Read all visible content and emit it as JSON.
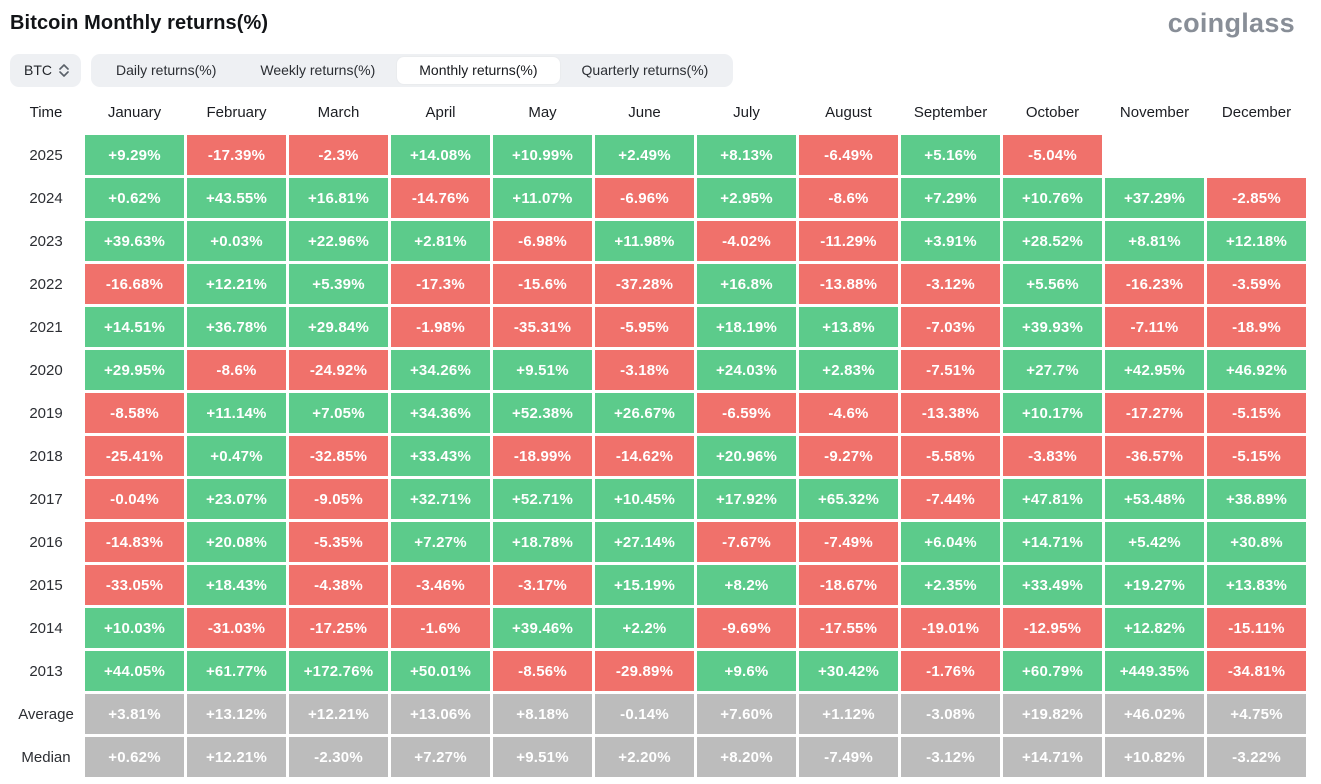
{
  "page": {
    "title": "Bitcoin Monthly returns(%)",
    "logo": "coinglass"
  },
  "colors": {
    "positive": "#5ccb8b",
    "negative": "#f0716b",
    "neutral": "#bcbcbc",
    "tab_bg": "#eef0f3",
    "active_tab_bg": "#ffffff",
    "logo_gray": "#888e97"
  },
  "controls": {
    "coin_selector": {
      "value": "BTC",
      "icon": "updown-chevron-icon"
    },
    "tabs": [
      {
        "label": "Daily returns(%)",
        "active": false
      },
      {
        "label": "Weekly returns(%)",
        "active": false
      },
      {
        "label": "Monthly returns(%)",
        "active": true
      },
      {
        "label": "Quarterly returns(%)",
        "active": false
      }
    ]
  },
  "chart_data": {
    "type": "table",
    "title": "Bitcoin Monthly returns(%)",
    "time_header": "Time",
    "columns": [
      "January",
      "February",
      "March",
      "April",
      "May",
      "June",
      "July",
      "August",
      "September",
      "October",
      "November",
      "December"
    ],
    "legend": {
      "g": "positive (green)",
      "r": "negative (red)",
      "n": "summary (gray)",
      "null": "no data"
    },
    "rows": [
      {
        "label": "2025",
        "cells": [
          {
            "v": "+9.29%",
            "c": "g"
          },
          {
            "v": "-17.39%",
            "c": "r"
          },
          {
            "v": "-2.3%",
            "c": "r"
          },
          {
            "v": "+14.08%",
            "c": "g"
          },
          {
            "v": "+10.99%",
            "c": "g"
          },
          {
            "v": "+2.49%",
            "c": "g"
          },
          {
            "v": "+8.13%",
            "c": "g"
          },
          {
            "v": "-6.49%",
            "c": "r"
          },
          {
            "v": "+5.16%",
            "c": "g"
          },
          {
            "v": "-5.04%",
            "c": "r"
          },
          null,
          null
        ]
      },
      {
        "label": "2024",
        "cells": [
          {
            "v": "+0.62%",
            "c": "g"
          },
          {
            "v": "+43.55%",
            "c": "g"
          },
          {
            "v": "+16.81%",
            "c": "g"
          },
          {
            "v": "-14.76%",
            "c": "r"
          },
          {
            "v": "+11.07%",
            "c": "g"
          },
          {
            "v": "-6.96%",
            "c": "r"
          },
          {
            "v": "+2.95%",
            "c": "g"
          },
          {
            "v": "-8.6%",
            "c": "r"
          },
          {
            "v": "+7.29%",
            "c": "g"
          },
          {
            "v": "+10.76%",
            "c": "g"
          },
          {
            "v": "+37.29%",
            "c": "g"
          },
          {
            "v": "-2.85%",
            "c": "r"
          }
        ]
      },
      {
        "label": "2023",
        "cells": [
          {
            "v": "+39.63%",
            "c": "g"
          },
          {
            "v": "+0.03%",
            "c": "g"
          },
          {
            "v": "+22.96%",
            "c": "g"
          },
          {
            "v": "+2.81%",
            "c": "g"
          },
          {
            "v": "-6.98%",
            "c": "r"
          },
          {
            "v": "+11.98%",
            "c": "g"
          },
          {
            "v": "-4.02%",
            "c": "r"
          },
          {
            "v": "-11.29%",
            "c": "r"
          },
          {
            "v": "+3.91%",
            "c": "g"
          },
          {
            "v": "+28.52%",
            "c": "g"
          },
          {
            "v": "+8.81%",
            "c": "g"
          },
          {
            "v": "+12.18%",
            "c": "g"
          }
        ]
      },
      {
        "label": "2022",
        "cells": [
          {
            "v": "-16.68%",
            "c": "r"
          },
          {
            "v": "+12.21%",
            "c": "g"
          },
          {
            "v": "+5.39%",
            "c": "g"
          },
          {
            "v": "-17.3%",
            "c": "r"
          },
          {
            "v": "-15.6%",
            "c": "r"
          },
          {
            "v": "-37.28%",
            "c": "r"
          },
          {
            "v": "+16.8%",
            "c": "g"
          },
          {
            "v": "-13.88%",
            "c": "r"
          },
          {
            "v": "-3.12%",
            "c": "r"
          },
          {
            "v": "+5.56%",
            "c": "g"
          },
          {
            "v": "-16.23%",
            "c": "r"
          },
          {
            "v": "-3.59%",
            "c": "r"
          }
        ]
      },
      {
        "label": "2021",
        "cells": [
          {
            "v": "+14.51%",
            "c": "g"
          },
          {
            "v": "+36.78%",
            "c": "g"
          },
          {
            "v": "+29.84%",
            "c": "g"
          },
          {
            "v": "-1.98%",
            "c": "r"
          },
          {
            "v": "-35.31%",
            "c": "r"
          },
          {
            "v": "-5.95%",
            "c": "r"
          },
          {
            "v": "+18.19%",
            "c": "g"
          },
          {
            "v": "+13.8%",
            "c": "g"
          },
          {
            "v": "-7.03%",
            "c": "r"
          },
          {
            "v": "+39.93%",
            "c": "g"
          },
          {
            "v": "-7.11%",
            "c": "r"
          },
          {
            "v": "-18.9%",
            "c": "r"
          }
        ]
      },
      {
        "label": "2020",
        "cells": [
          {
            "v": "+29.95%",
            "c": "g"
          },
          {
            "v": "-8.6%",
            "c": "r"
          },
          {
            "v": "-24.92%",
            "c": "r"
          },
          {
            "v": "+34.26%",
            "c": "g"
          },
          {
            "v": "+9.51%",
            "c": "g"
          },
          {
            "v": "-3.18%",
            "c": "r"
          },
          {
            "v": "+24.03%",
            "c": "g"
          },
          {
            "v": "+2.83%",
            "c": "g"
          },
          {
            "v": "-7.51%",
            "c": "r"
          },
          {
            "v": "+27.7%",
            "c": "g"
          },
          {
            "v": "+42.95%",
            "c": "g"
          },
          {
            "v": "+46.92%",
            "c": "g"
          }
        ]
      },
      {
        "label": "2019",
        "cells": [
          {
            "v": "-8.58%",
            "c": "r"
          },
          {
            "v": "+11.14%",
            "c": "g"
          },
          {
            "v": "+7.05%",
            "c": "g"
          },
          {
            "v": "+34.36%",
            "c": "g"
          },
          {
            "v": "+52.38%",
            "c": "g"
          },
          {
            "v": "+26.67%",
            "c": "g"
          },
          {
            "v": "-6.59%",
            "c": "r"
          },
          {
            "v": "-4.6%",
            "c": "r"
          },
          {
            "v": "-13.38%",
            "c": "r"
          },
          {
            "v": "+10.17%",
            "c": "g"
          },
          {
            "v": "-17.27%",
            "c": "r"
          },
          {
            "v": "-5.15%",
            "c": "r"
          }
        ]
      },
      {
        "label": "2018",
        "cells": [
          {
            "v": "-25.41%",
            "c": "r"
          },
          {
            "v": "+0.47%",
            "c": "g"
          },
          {
            "v": "-32.85%",
            "c": "r"
          },
          {
            "v": "+33.43%",
            "c": "g"
          },
          {
            "v": "-18.99%",
            "c": "r"
          },
          {
            "v": "-14.62%",
            "c": "r"
          },
          {
            "v": "+20.96%",
            "c": "g"
          },
          {
            "v": "-9.27%",
            "c": "r"
          },
          {
            "v": "-5.58%",
            "c": "r"
          },
          {
            "v": "-3.83%",
            "c": "r"
          },
          {
            "v": "-36.57%",
            "c": "r"
          },
          {
            "v": "-5.15%",
            "c": "r"
          }
        ]
      },
      {
        "label": "2017",
        "cells": [
          {
            "v": "-0.04%",
            "c": "r"
          },
          {
            "v": "+23.07%",
            "c": "g"
          },
          {
            "v": "-9.05%",
            "c": "r"
          },
          {
            "v": "+32.71%",
            "c": "g"
          },
          {
            "v": "+52.71%",
            "c": "g"
          },
          {
            "v": "+10.45%",
            "c": "g"
          },
          {
            "v": "+17.92%",
            "c": "g"
          },
          {
            "v": "+65.32%",
            "c": "g"
          },
          {
            "v": "-7.44%",
            "c": "r"
          },
          {
            "v": "+47.81%",
            "c": "g"
          },
          {
            "v": "+53.48%",
            "c": "g"
          },
          {
            "v": "+38.89%",
            "c": "g"
          }
        ]
      },
      {
        "label": "2016",
        "cells": [
          {
            "v": "-14.83%",
            "c": "r"
          },
          {
            "v": "+20.08%",
            "c": "g"
          },
          {
            "v": "-5.35%",
            "c": "r"
          },
          {
            "v": "+7.27%",
            "c": "g"
          },
          {
            "v": "+18.78%",
            "c": "g"
          },
          {
            "v": "+27.14%",
            "c": "g"
          },
          {
            "v": "-7.67%",
            "c": "r"
          },
          {
            "v": "-7.49%",
            "c": "r"
          },
          {
            "v": "+6.04%",
            "c": "g"
          },
          {
            "v": "+14.71%",
            "c": "g"
          },
          {
            "v": "+5.42%",
            "c": "g"
          },
          {
            "v": "+30.8%",
            "c": "g"
          }
        ]
      },
      {
        "label": "2015",
        "cells": [
          {
            "v": "-33.05%",
            "c": "r"
          },
          {
            "v": "+18.43%",
            "c": "g"
          },
          {
            "v": "-4.38%",
            "c": "r"
          },
          {
            "v": "-3.46%",
            "c": "r"
          },
          {
            "v": "-3.17%",
            "c": "r"
          },
          {
            "v": "+15.19%",
            "c": "g"
          },
          {
            "v": "+8.2%",
            "c": "g"
          },
          {
            "v": "-18.67%",
            "c": "r"
          },
          {
            "v": "+2.35%",
            "c": "g"
          },
          {
            "v": "+33.49%",
            "c": "g"
          },
          {
            "v": "+19.27%",
            "c": "g"
          },
          {
            "v": "+13.83%",
            "c": "g"
          }
        ]
      },
      {
        "label": "2014",
        "cells": [
          {
            "v": "+10.03%",
            "c": "g"
          },
          {
            "v": "-31.03%",
            "c": "r"
          },
          {
            "v": "-17.25%",
            "c": "r"
          },
          {
            "v": "-1.6%",
            "c": "r"
          },
          {
            "v": "+39.46%",
            "c": "g"
          },
          {
            "v": "+2.2%",
            "c": "g"
          },
          {
            "v": "-9.69%",
            "c": "r"
          },
          {
            "v": "-17.55%",
            "c": "r"
          },
          {
            "v": "-19.01%",
            "c": "r"
          },
          {
            "v": "-12.95%",
            "c": "r"
          },
          {
            "v": "+12.82%",
            "c": "g"
          },
          {
            "v": "-15.11%",
            "c": "r"
          }
        ]
      },
      {
        "label": "2013",
        "cells": [
          {
            "v": "+44.05%",
            "c": "g"
          },
          {
            "v": "+61.77%",
            "c": "g"
          },
          {
            "v": "+172.76%",
            "c": "g"
          },
          {
            "v": "+50.01%",
            "c": "g"
          },
          {
            "v": "-8.56%",
            "c": "r"
          },
          {
            "v": "-29.89%",
            "c": "r"
          },
          {
            "v": "+9.6%",
            "c": "g"
          },
          {
            "v": "+30.42%",
            "c": "g"
          },
          {
            "v": "-1.76%",
            "c": "r"
          },
          {
            "v": "+60.79%",
            "c": "g"
          },
          {
            "v": "+449.35%",
            "c": "g"
          },
          {
            "v": "-34.81%",
            "c": "r"
          }
        ]
      },
      {
        "label": "Average",
        "cells": [
          {
            "v": "+3.81%",
            "c": "n"
          },
          {
            "v": "+13.12%",
            "c": "n"
          },
          {
            "v": "+12.21%",
            "c": "n"
          },
          {
            "v": "+13.06%",
            "c": "n"
          },
          {
            "v": "+8.18%",
            "c": "n"
          },
          {
            "v": "-0.14%",
            "c": "n"
          },
          {
            "v": "+7.60%",
            "c": "n"
          },
          {
            "v": "+1.12%",
            "c": "n"
          },
          {
            "v": "-3.08%",
            "c": "n"
          },
          {
            "v": "+19.82%",
            "c": "n"
          },
          {
            "v": "+46.02%",
            "c": "n"
          },
          {
            "v": "+4.75%",
            "c": "n"
          }
        ]
      },
      {
        "label": "Median",
        "cells": [
          {
            "v": "+0.62%",
            "c": "n"
          },
          {
            "v": "+12.21%",
            "c": "n"
          },
          {
            "v": "-2.30%",
            "c": "n"
          },
          {
            "v": "+7.27%",
            "c": "n"
          },
          {
            "v": "+9.51%",
            "c": "n"
          },
          {
            "v": "+2.20%",
            "c": "n"
          },
          {
            "v": "+8.20%",
            "c": "n"
          },
          {
            "v": "-7.49%",
            "c": "n"
          },
          {
            "v": "-3.12%",
            "c": "n"
          },
          {
            "v": "+14.71%",
            "c": "n"
          },
          {
            "v": "+10.82%",
            "c": "n"
          },
          {
            "v": "-3.22%",
            "c": "n"
          }
        ]
      }
    ]
  }
}
